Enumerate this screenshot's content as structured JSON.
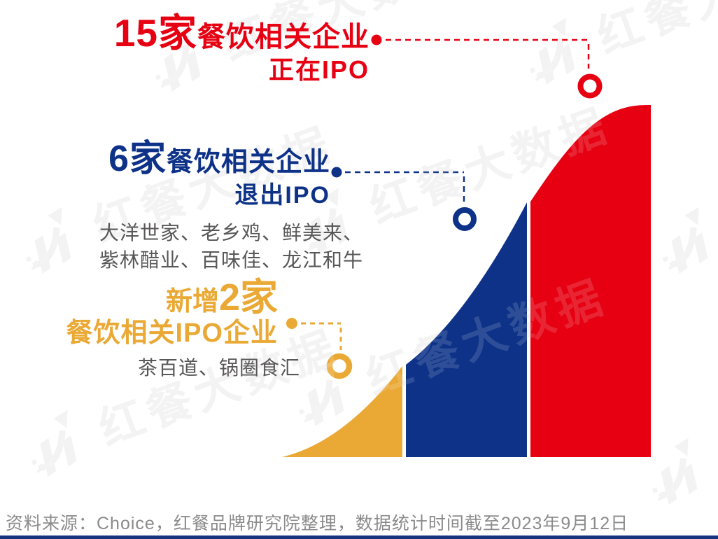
{
  "watermark": {
    "text": "红餐大数据",
    "logo": "hongcan-arrow-up-logo-icon"
  },
  "colors": {
    "red": "#e60012",
    "blue": "#0d3288",
    "yellow": "#eaa935",
    "company_text": "#595757",
    "source_text": "#8b8b8b",
    "footer_bar": "#16337e",
    "watermark_back": "#f1f1f1"
  },
  "annotations": {
    "in_ipo": {
      "count": "15家",
      "label": "餐饮相关企业",
      "status": "正在IPO"
    },
    "exited_ipo": {
      "count": "6家",
      "label": "餐饮相关企业",
      "status": "退出IPO",
      "companies_line1": "大洋世家、老乡鸡、鲜美来、",
      "companies_line2": "紫林醋业、百味佳、龙江和牛"
    },
    "new_ipo": {
      "prefix": "新增",
      "count": "2家",
      "label": "餐饮相关IPO企业",
      "companies": "茶百道、锅圈食汇"
    }
  },
  "source_note": "资料来源：Choice，红餐品牌研究院整理，数据统计时间截至2023年9月12日",
  "chart_data": {
    "type": "area",
    "title": "",
    "style": "stylized S-shaped growth curve split into three colored stages, no axes, no grid",
    "grid": false,
    "legend_position": "none",
    "stages": [
      {
        "name": "新增餐饮相关IPO企业",
        "value": 2,
        "unit": "家",
        "companies": [
          "茶百道",
          "锅圈食汇"
        ],
        "color": "#eaa935"
      },
      {
        "name": "退出IPO的餐饮相关企业",
        "value": 6,
        "unit": "家",
        "companies": [
          "大洋世家",
          "老乡鸡",
          "鲜美来",
          "紫林醋业",
          "百味佳",
          "龙江和牛"
        ],
        "color": "#0d3288"
      },
      {
        "name": "正在IPO的餐饮相关企业",
        "value": 15,
        "unit": "家",
        "companies": [],
        "color": "#e60012"
      }
    ]
  }
}
